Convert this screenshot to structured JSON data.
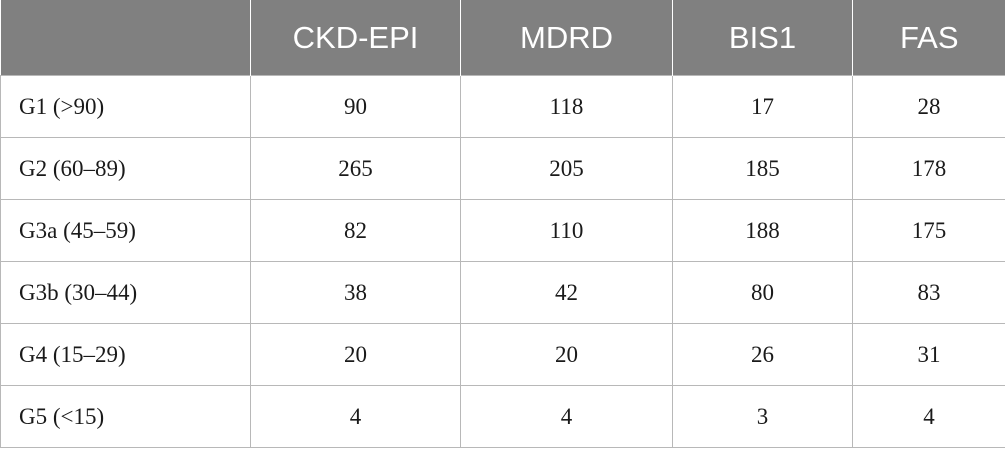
{
  "table": {
    "header": [
      "",
      "CKD-EPI",
      "MDRD",
      "BIS1",
      "FAS"
    ],
    "rows": [
      {
        "label": "G1 (>90)",
        "values": [
          "90",
          "118",
          "17",
          "28"
        ]
      },
      {
        "label": "G2 (60–89)",
        "values": [
          "265",
          "205",
          "185",
          "178"
        ]
      },
      {
        "label": "G3a (45–59)",
        "values": [
          "82",
          "110",
          "188",
          "175"
        ]
      },
      {
        "label": "G3b (30–44)",
        "values": [
          "38",
          "42",
          "80",
          "83"
        ]
      },
      {
        "label": "G4 (15–29)",
        "values": [
          "20",
          "20",
          "26",
          "31"
        ]
      },
      {
        "label": "G5 (<15)",
        "values": [
          "4",
          "4",
          "3",
          "4"
        ]
      }
    ]
  },
  "colors": {
    "header_bg": "#808080",
    "header_text": "#ffffff",
    "grid": "#b8b8b8"
  }
}
